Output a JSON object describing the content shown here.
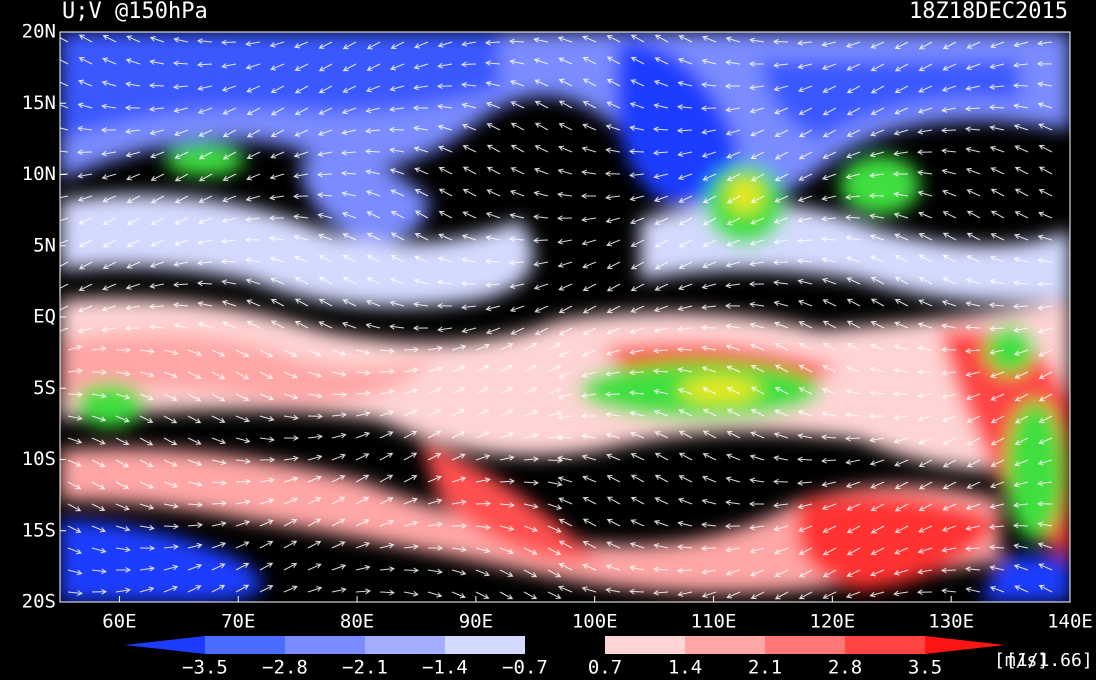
{
  "header": {
    "title": "U;V @150hPa",
    "time": "18Z18DEC2015"
  },
  "axes": {
    "lat_labels": [
      "20N",
      "15N",
      "10N",
      "5N",
      "EQ",
      "5S",
      "10S",
      "15S",
      "20S"
    ],
    "lon_labels": [
      "60E",
      "70E",
      "80E",
      "90E",
      "100E",
      "110E",
      "120E",
      "130E",
      "140E"
    ]
  },
  "colorbar": {
    "labels": [
      "−3.5",
      "−2.8",
      "−2.1",
      "−1.4",
      "−0.7",
      "0.7",
      "1.4",
      "2.1",
      "2.8",
      "3.5"
    ],
    "colors": [
      "#1e3cff",
      "#4a6cff",
      "#7a8cff",
      "#a4adff",
      "#d4daff",
      "#000000",
      "#ffd4d4",
      "#ffa6a6",
      "#ff7676",
      "#ff4444",
      "#ff1414"
    ],
    "units": [
      "[m/s]",
      "[1/1.66]"
    ]
  }
}
